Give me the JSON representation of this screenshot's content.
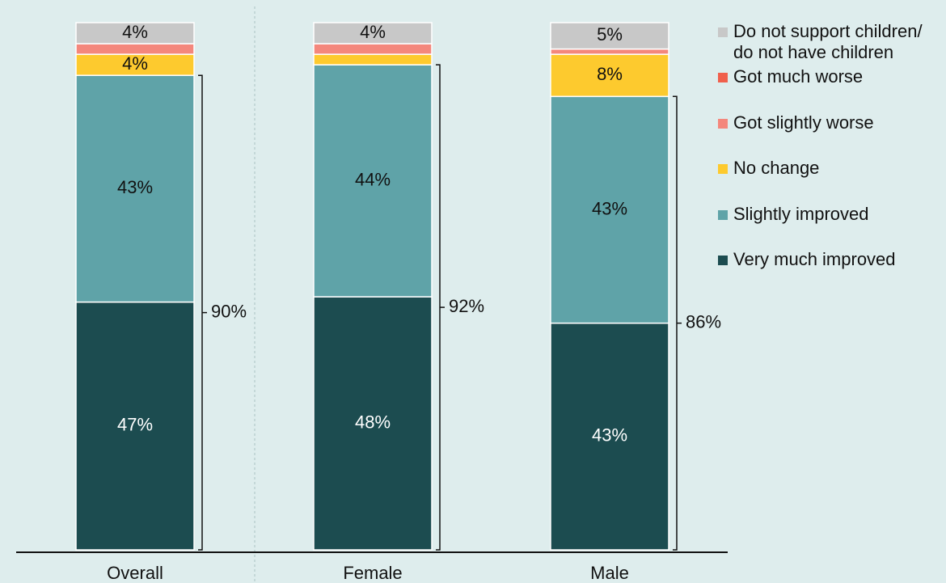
{
  "chart_data": {
    "type": "stacked-bar",
    "categories": [
      "Overall",
      "Female",
      "Male"
    ],
    "ylim": [
      0,
      100
    ],
    "series": [
      {
        "name": "Very much improved",
        "color": "#1c4c50",
        "values": [
          47,
          48,
          43
        ],
        "value_labels": [
          "47%",
          "48%",
          "43%"
        ]
      },
      {
        "name": "Slightly improved",
        "color": "#5fa3a8",
        "values": [
          43,
          44,
          43
        ],
        "value_labels": [
          "43%",
          "44%",
          "43%"
        ]
      },
      {
        "name": "No change",
        "color": "#fdca2e",
        "values": [
          4,
          2,
          8
        ],
        "value_labels": [
          "4%",
          null,
          "8%"
        ]
      },
      {
        "name": "Got slightly worse",
        "color": "#f4877c",
        "values": [
          2,
          2,
          1
        ],
        "value_labels": [
          null,
          null,
          null
        ]
      },
      {
        "name": "Got much worse",
        "color": "#f0604c",
        "values": [
          0,
          0,
          0
        ],
        "value_labels": [
          null,
          null,
          null
        ]
      },
      {
        "name": "Do not support children/\ndo not have children",
        "color": "#c8c8c8",
        "values": [
          4,
          4,
          5
        ],
        "value_labels": [
          "4%",
          "4%",
          "5%"
        ]
      }
    ],
    "brackets": {
      "values": [
        90,
        92,
        86
      ],
      "labels": [
        "90%",
        "92%",
        "86%"
      ]
    }
  }
}
